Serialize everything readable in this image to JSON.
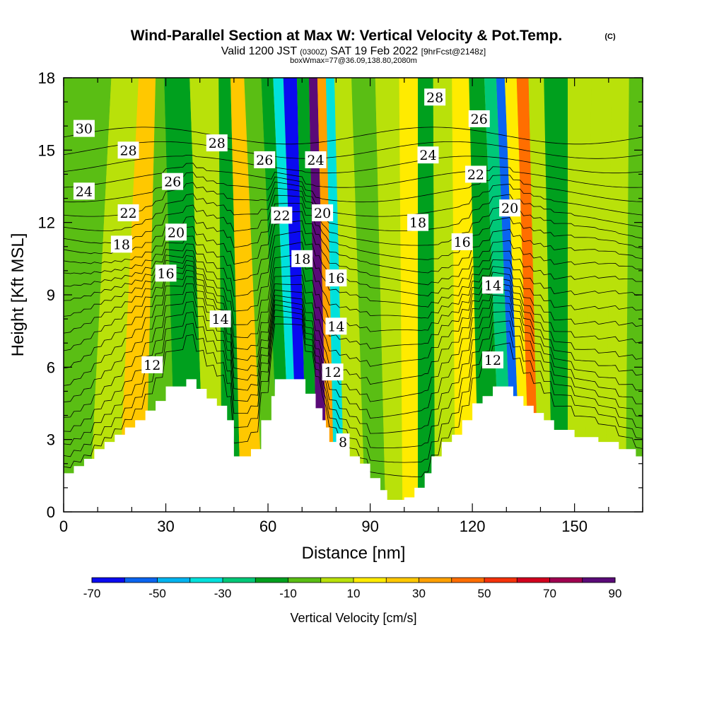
{
  "chart_data": {
    "type": "heatmap",
    "title": {
      "main": "Wind-Parallel Section at Max W: Vertical Velocity & Pot.Temp.",
      "copyright": "(C)",
      "line2_a": "Valid 1200 JST",
      "line2_b": "(0300Z)",
      "line2_c": "SAT 19 Feb 2022",
      "line2_d": "[9hrFcst@2148z]",
      "line3": "boxWmax=77@36.09,138.80,2080m"
    },
    "xlabel": "Distance [nm]",
    "ylabel": "Height [Kft MSL]",
    "xlim": [
      0,
      170
    ],
    "ylim": [
      0,
      18
    ],
    "xticks": [
      0,
      30,
      60,
      90,
      120,
      150
    ],
    "yticks": [
      0,
      3,
      6,
      9,
      12,
      15,
      18
    ],
    "colorbar": {
      "label": "Vertical Velocity [cm/s]",
      "levels": [
        -70,
        -60,
        -50,
        -40,
        -30,
        -20,
        -10,
        0,
        10,
        20,
        30,
        40,
        50,
        60,
        70,
        80,
        90
      ],
      "tick_labels": [
        "-70",
        "-50",
        "-30",
        "-10",
        "10",
        "30",
        "50",
        "70",
        "90"
      ],
      "colors": [
        "#0a0af0",
        "#0a64f0",
        "#00b4f0",
        "#00e1dc",
        "#00c878",
        "#00a01e",
        "#5abe14",
        "#b9e10a",
        "#ffeb00",
        "#ffc800",
        "#ffa000",
        "#ff6e00",
        "#f5320a",
        "#d2001e",
        "#a00050",
        "#5a0a78"
      ]
    },
    "terrain": [
      {
        "x": 0,
        "h": 1.6
      },
      {
        "x": 3,
        "h": 1.9
      },
      {
        "x": 6,
        "h": 2.2
      },
      {
        "x": 9,
        "h": 2.6
      },
      {
        "x": 12,
        "h": 2.9
      },
      {
        "x": 15,
        "h": 3.2
      },
      {
        "x": 18,
        "h": 3.5
      },
      {
        "x": 21,
        "h": 3.8
      },
      {
        "x": 24,
        "h": 4.2
      },
      {
        "x": 27,
        "h": 4.6
      },
      {
        "x": 30,
        "h": 5.2
      },
      {
        "x": 36,
        "h": 5.5
      },
      {
        "x": 39,
        "h": 5.1
      },
      {
        "x": 42,
        "h": 4.7
      },
      {
        "x": 45,
        "h": 4.4
      },
      {
        "x": 48,
        "h": 3.8
      },
      {
        "x": 50,
        "h": 2.3
      },
      {
        "x": 55,
        "h": 2.6
      },
      {
        "x": 58,
        "h": 3.8
      },
      {
        "x": 61,
        "h": 4.8
      },
      {
        "x": 62,
        "h": 5.5
      },
      {
        "x": 68,
        "h": 5.5
      },
      {
        "x": 71,
        "h": 4.9
      },
      {
        "x": 74,
        "h": 4.3
      },
      {
        "x": 76,
        "h": 3.8
      },
      {
        "x": 77,
        "h": 3.5
      },
      {
        "x": 78,
        "h": 2.9
      },
      {
        "x": 81,
        "h": 2.6
      },
      {
        "x": 84,
        "h": 2.3
      },
      {
        "x": 87,
        "h": 2.0
      },
      {
        "x": 90,
        "h": 1.4
      },
      {
        "x": 93,
        "h": 0.9
      },
      {
        "x": 95,
        "h": 0.5
      },
      {
        "x": 100,
        "h": 0.6
      },
      {
        "x": 103,
        "h": 1.0
      },
      {
        "x": 106,
        "h": 1.6
      },
      {
        "x": 108,
        "h": 2.3
      },
      {
        "x": 111,
        "h": 2.9
      },
      {
        "x": 114,
        "h": 3.2
      },
      {
        "x": 117,
        "h": 3.8
      },
      {
        "x": 120,
        "h": 4.5
      },
      {
        "x": 123,
        "h": 4.8
      },
      {
        "x": 126,
        "h": 5.2
      },
      {
        "x": 130,
        "h": 5.2
      },
      {
        "x": 132,
        "h": 4.8
      },
      {
        "x": 135,
        "h": 4.4
      },
      {
        "x": 138,
        "h": 4.1
      },
      {
        "x": 141,
        "h": 3.8
      },
      {
        "x": 144,
        "h": 3.4
      },
      {
        "x": 150,
        "h": 3.1
      },
      {
        "x": 157,
        "h": 2.9
      },
      {
        "x": 163,
        "h": 2.6
      },
      {
        "x": 166,
        "h": 2.6
      },
      {
        "x": 168,
        "h": 2.3
      },
      {
        "x": 170,
        "h": 2.3
      }
    ],
    "w_bands": [
      {
        "x_bottom": 3,
        "x_top": 10,
        "w": -10
      },
      {
        "x_bottom": 12,
        "x_top": 18,
        "w": 0
      },
      {
        "x_bottom": 20,
        "x_top": 26,
        "w": 20
      },
      {
        "x_bottom": 28,
        "x_top": 28,
        "w": -10
      },
      {
        "x_bottom": 38,
        "x_top": 31,
        "w": -20
      },
      {
        "x_bottom": 45,
        "x_top": 43,
        "w": 0
      },
      {
        "x_bottom": 48,
        "x_top": 48,
        "w": -15
      },
      {
        "x_bottom": 56,
        "x_top": 50,
        "w": 20
      },
      {
        "x_bottom": 61,
        "x_top": 56,
        "w": -10
      },
      {
        "x_bottom": 66,
        "x_top": 60,
        "w": -20
      },
      {
        "x_bottom": 68,
        "x_top": 63,
        "w": -40
      },
      {
        "x_bottom": 70,
        "x_top": 66,
        "w": -70
      },
      {
        "x_bottom": 73,
        "x_top": 71,
        "w": -20
      },
      {
        "x_bottom": 76,
        "x_top": 73,
        "w": 80
      },
      {
        "x_bottom": 79,
        "x_top": 76,
        "w": 30
      },
      {
        "x_bottom": 80,
        "x_top": 78,
        "w": -35
      },
      {
        "x_bottom": 85,
        "x_top": 81,
        "w": 5
      },
      {
        "x_bottom": 92,
        "x_top": 88,
        "w": -10
      },
      {
        "x_bottom": 97,
        "x_top": 95,
        "w": 0
      },
      {
        "x_bottom": 102,
        "x_top": 102,
        "w": 10
      },
      {
        "x_bottom": 106,
        "x_top": 106,
        "w": -15
      },
      {
        "x_bottom": 112,
        "x_top": 111,
        "w": 5
      },
      {
        "x_bottom": 118,
        "x_top": 117,
        "w": 15
      },
      {
        "x_bottom": 126,
        "x_top": 121,
        "w": -15
      },
      {
        "x_bottom": 131,
        "x_top": 126,
        "w": -25
      },
      {
        "x_bottom": 133,
        "x_top": 128,
        "w": -55
      },
      {
        "x_bottom": 136,
        "x_top": 131,
        "w": 10
      },
      {
        "x_bottom": 138,
        "x_top": 135,
        "w": 40
      },
      {
        "x_bottom": 141,
        "x_top": 138,
        "w": 0
      },
      {
        "x_bottom": 146,
        "x_top": 144,
        "w": -15
      },
      {
        "x_bottom": 150,
        "x_top": 152,
        "w": 5
      },
      {
        "x_bottom": 156,
        "x_top": 158,
        "w": 0
      },
      {
        "x_bottom": 162,
        "x_top": 164,
        "w": 5
      },
      {
        "x_bottom": 168,
        "x_top": 168,
        "w": -5
      }
    ],
    "theta_labels": [
      {
        "text": "30",
        "x": 6,
        "y": 15.9
      },
      {
        "text": "28",
        "x": 19,
        "y": 15.0
      },
      {
        "text": "28",
        "x": 45,
        "y": 15.3
      },
      {
        "text": "26",
        "x": 32,
        "y": 13.7
      },
      {
        "text": "26",
        "x": 59,
        "y": 14.6
      },
      {
        "text": "24",
        "x": 6,
        "y": 13.3
      },
      {
        "text": "24",
        "x": 74,
        "y": 14.6
      },
      {
        "text": "24",
        "x": 107,
        "y": 14.8
      },
      {
        "text": "22",
        "x": 19,
        "y": 12.4
      },
      {
        "text": "22",
        "x": 64,
        "y": 12.3
      },
      {
        "text": "22",
        "x": 121,
        "y": 14.0
      },
      {
        "text": "20",
        "x": 33,
        "y": 11.6
      },
      {
        "text": "20",
        "x": 76,
        "y": 12.4
      },
      {
        "text": "20",
        "x": 131,
        "y": 12.6
      },
      {
        "text": "18",
        "x": 17,
        "y": 11.1
      },
      {
        "text": "18",
        "x": 70,
        "y": 10.5
      },
      {
        "text": "18",
        "x": 104,
        "y": 12.0
      },
      {
        "text": "16",
        "x": 30,
        "y": 9.9
      },
      {
        "text": "16",
        "x": 80,
        "y": 9.7
      },
      {
        "text": "16",
        "x": 117,
        "y": 11.2
      },
      {
        "text": "14",
        "x": 46,
        "y": 8.0
      },
      {
        "text": "14",
        "x": 80,
        "y": 7.7
      },
      {
        "text": "14",
        "x": 126,
        "y": 9.4
      },
      {
        "text": "12",
        "x": 26,
        "y": 6.1
      },
      {
        "text": "12",
        "x": 79,
        "y": 5.8
      },
      {
        "text": "12",
        "x": 126,
        "y": 6.3
      },
      {
        "text": "28",
        "x": 109,
        "y": 17.2
      },
      {
        "text": "26",
        "x": 122,
        "y": 16.3
      },
      {
        "text": "8",
        "x": 82,
        "y": 2.9
      }
    ],
    "theta_levels": [
      8,
      9,
      10,
      11,
      12,
      13,
      14,
      15,
      16,
      17,
      18,
      19,
      20,
      21,
      22,
      23,
      24,
      25,
      26,
      27,
      28,
      29,
      30,
      31
    ]
  }
}
